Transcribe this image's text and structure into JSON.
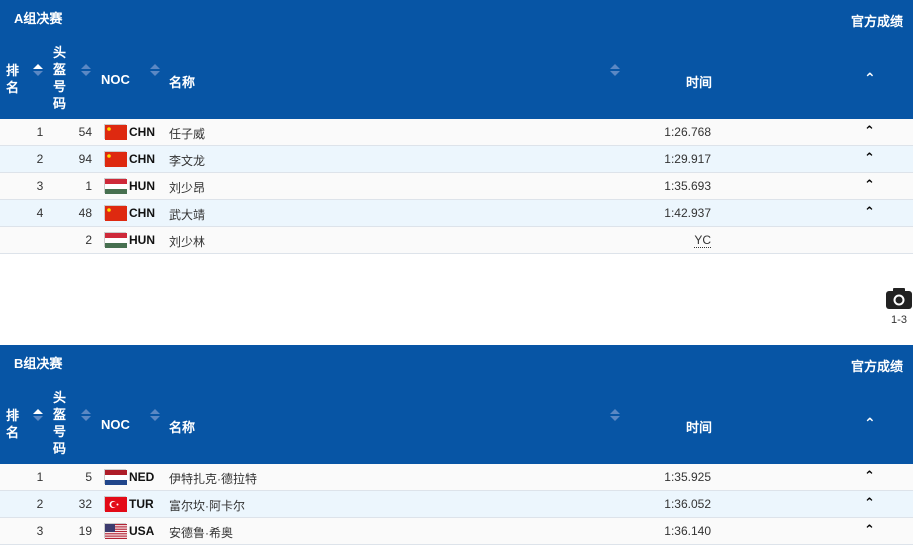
{
  "columns": {
    "rank": "排\n名",
    "bib": "头\n盔\n号\n码",
    "noc": "NOC",
    "name": "名称",
    "time": "时间"
  },
  "official_label": "官方成绩",
  "colors": {
    "header": "#0755a5",
    "row_alt": "#ecf6fd"
  },
  "groups": [
    {
      "title": "A组决赛",
      "rows": [
        {
          "rank": "1",
          "bib": "54",
          "noc": "CHN",
          "name": "任子威",
          "time": "1:26.768",
          "expand": true
        },
        {
          "rank": "2",
          "bib": "94",
          "noc": "CHN",
          "name": "李文龙",
          "time": "1:29.917",
          "expand": true
        },
        {
          "rank": "3",
          "bib": "1",
          "noc": "HUN",
          "name": "刘少昂",
          "time": "1:35.693",
          "expand": true
        },
        {
          "rank": "4",
          "bib": "48",
          "noc": "CHN",
          "name": "武大靖",
          "time": "1:42.937",
          "expand": true
        },
        {
          "rank": "",
          "bib": "2",
          "noc": "HUN",
          "name": "刘少林",
          "time": "YC",
          "expand": false
        }
      ]
    },
    {
      "title": "B组决赛",
      "rows": [
        {
          "rank": "1",
          "bib": "5",
          "noc": "NED",
          "name": "伊特扎克·德拉特",
          "time": "1:35.925",
          "expand": true
        },
        {
          "rank": "2",
          "bib": "32",
          "noc": "TUR",
          "name": "富尔坎·阿卡尔",
          "time": "1:36.052",
          "expand": true
        },
        {
          "rank": "3",
          "bib": "19",
          "noc": "USA",
          "name": "安德鲁·希奥",
          "time": "1:36.140",
          "expand": true
        }
      ]
    }
  ],
  "camera": {
    "label": "1-3",
    "icon": "camera-icon"
  }
}
